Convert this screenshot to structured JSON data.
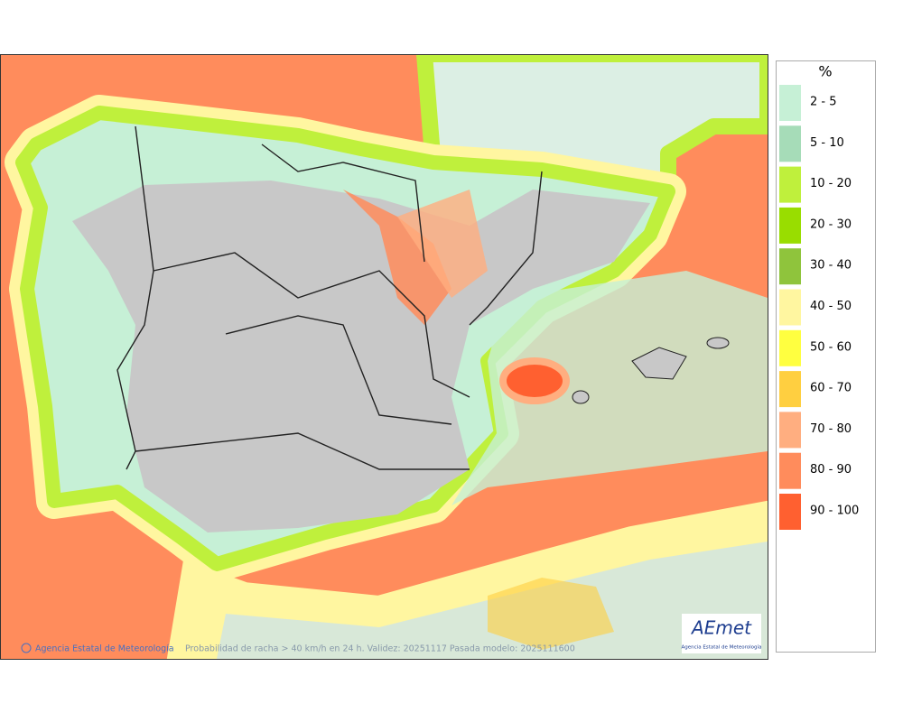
{
  "legend": {
    "title": "%",
    "items": [
      {
        "label": "2 - 5",
        "color": "#c6f0d6"
      },
      {
        "label": "5 - 10",
        "color": "#a6dcb8"
      },
      {
        "label": "10 - 20",
        "color": "#bff03c"
      },
      {
        "label": "20 - 30",
        "color": "#99dd00"
      },
      {
        "label": "30 - 40",
        "color": "#8fc43c"
      },
      {
        "label": "40 - 50",
        "color": "#fff6a0"
      },
      {
        "label": "50 - 60",
        "color": "#ffff40"
      },
      {
        "label": "60 - 70",
        "color": "#ffcf40"
      },
      {
        "label": "70 - 80",
        "color": "#ffae80"
      },
      {
        "label": "80 - 90",
        "color": "#ff8c5c"
      },
      {
        "label": "90 - 100",
        "color": "#ff6030"
      }
    ]
  },
  "footer": {
    "credit": "Agencia Estatal de Meteorología",
    "caption": "Probabilidad de racha > 40 km/h en 24 h. Validez: 20251117 Pasada modelo: 2025111600"
  },
  "logo": {
    "name": "AEmet",
    "subtitle": "Agencia Estatal de Meteorología"
  }
}
